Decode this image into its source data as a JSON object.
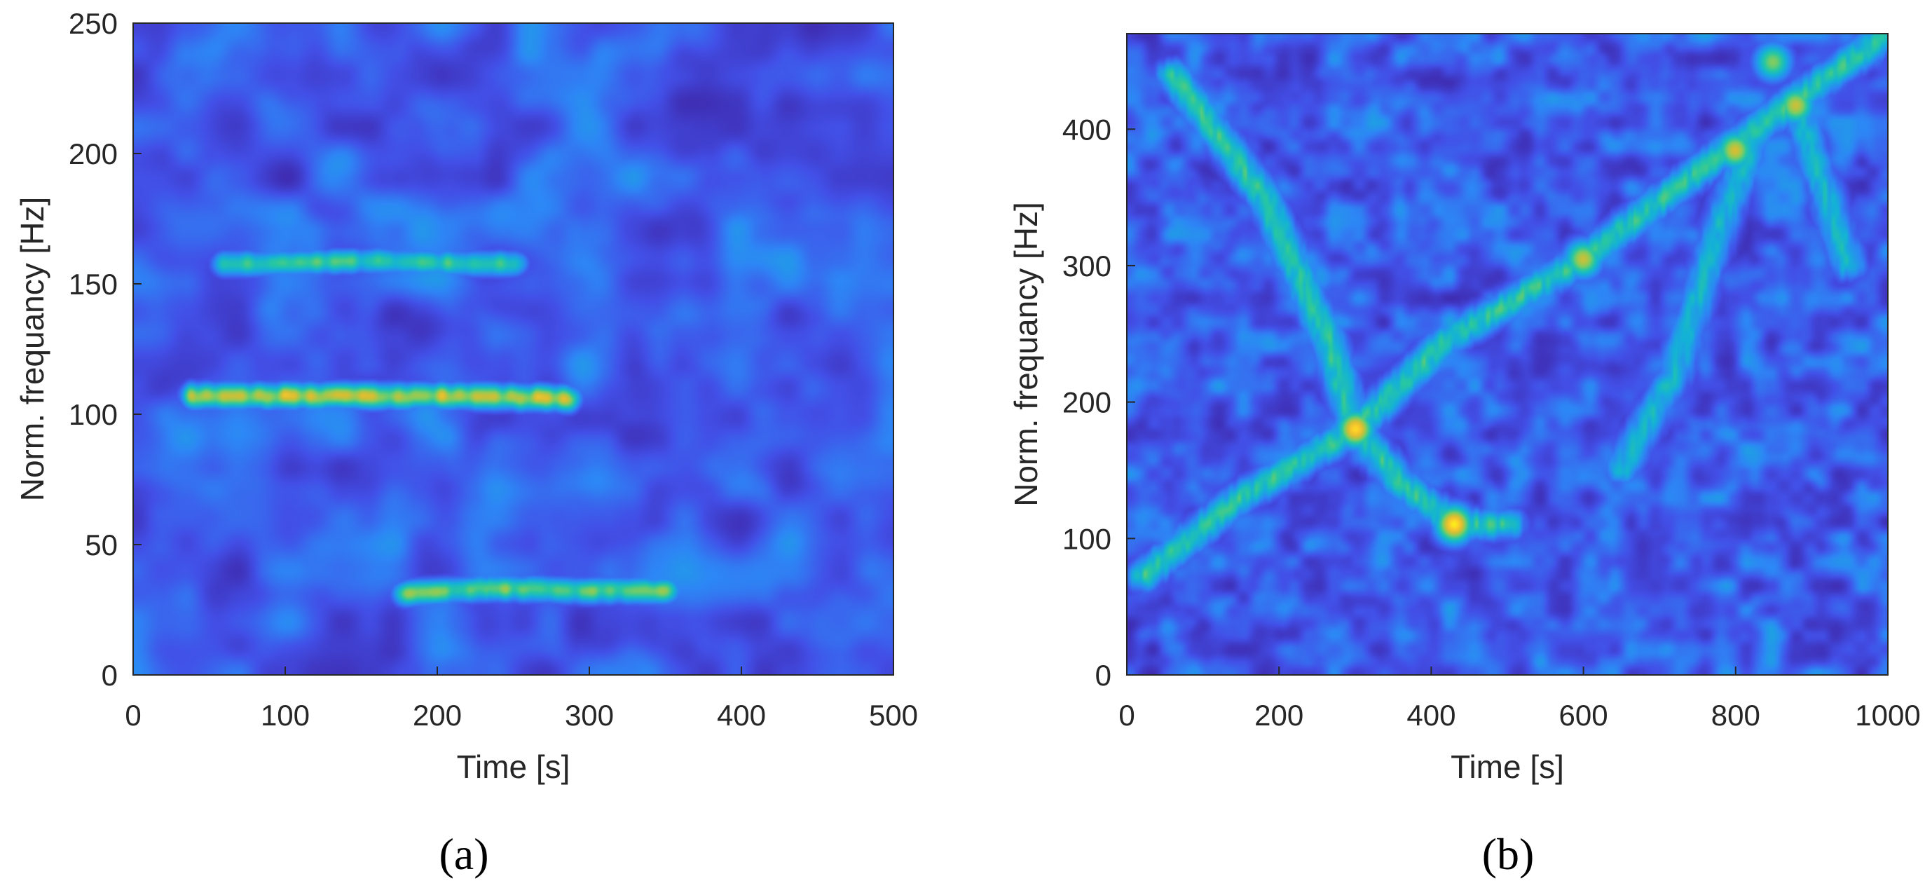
{
  "chart_data": [
    {
      "type": "heatmap",
      "panel_label": "(a)",
      "xlabel": "Time [s]",
      "ylabel": "Norm. frequancy [Hz]",
      "xlim": [
        0,
        500
      ],
      "ylim": [
        0,
        250
      ],
      "xticks": [
        "0",
        "100",
        "200",
        "300",
        "400",
        "500"
      ],
      "yticks": [
        "0",
        "50",
        "100",
        "150",
        "200",
        "250"
      ],
      "colormap": "parula",
      "ridges": [
        {
          "points": [
            [
              60,
              158
            ],
            [
              100,
              158
            ],
            [
              160,
              159
            ],
            [
              210,
              158
            ],
            [
              250,
              158
            ]
          ],
          "peak": 0.62
        },
        {
          "points": [
            [
              40,
              107
            ],
            [
              120,
              107
            ],
            [
              160,
              107
            ],
            [
              220,
              107
            ],
            [
              285,
              106
            ]
          ],
          "peak": 0.85
        },
        {
          "points": [
            [
              180,
              31
            ],
            [
              240,
              33
            ],
            [
              290,
              32
            ],
            [
              350,
              32
            ]
          ],
          "peak": 0.7
        }
      ]
    },
    {
      "type": "heatmap",
      "panel_label": "(b)",
      "xlabel": "Time [s]",
      "ylabel": "Norm. frequancy [Hz]",
      "xlim": [
        0,
        1000
      ],
      "ylim": [
        0,
        470
      ],
      "xticks": [
        "0",
        "200",
        "400",
        "600",
        "800",
        "1000"
      ],
      "yticks": [
        "0",
        "100",
        "200",
        "300",
        "400"
      ],
      "colormap": "parula",
      "ridges": [
        {
          "points": [
            [
              20,
              72
            ],
            [
              150,
              130
            ],
            [
              300,
              180
            ],
            [
              420,
              245
            ],
            [
              600,
              305
            ],
            [
              800,
              390
            ],
            [
              1000,
              470
            ]
          ],
          "peak": 0.6
        },
        {
          "points": [
            [
              60,
              440
            ],
            [
              180,
              350
            ],
            [
              260,
              250
            ],
            [
              300,
              180
            ],
            [
              360,
              140
            ],
            [
              430,
              110
            ],
            [
              500,
              110
            ]
          ],
          "peak": 0.6
        },
        {
          "points": [
            [
              650,
              150
            ],
            [
              720,
              220
            ],
            [
              780,
              330
            ],
            [
              830,
              400
            ],
            [
              880,
              420
            ],
            [
              950,
              300
            ]
          ],
          "peak": 0.5
        }
      ],
      "hotspots": [
        {
          "x": 300,
          "y": 180,
          "peak": 0.95
        },
        {
          "x": 430,
          "y": 110,
          "peak": 0.98
        },
        {
          "x": 600,
          "y": 305,
          "peak": 0.8
        },
        {
          "x": 800,
          "y": 385,
          "peak": 0.82
        },
        {
          "x": 880,
          "y": 418,
          "peak": 0.8
        },
        {
          "x": 850,
          "y": 450,
          "peak": 0.7
        }
      ]
    }
  ]
}
